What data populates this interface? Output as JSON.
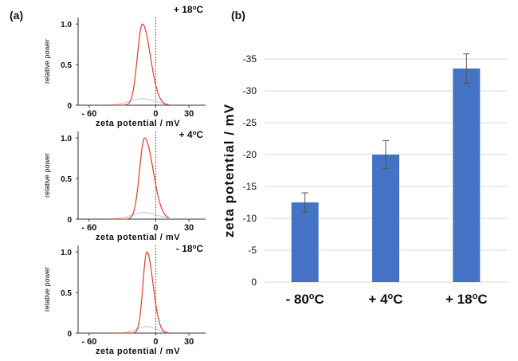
{
  "panel_labels": [
    "(a)",
    "(b)"
  ],
  "chart_data": [
    {
      "type": "line",
      "panel": "(a)",
      "annotation": "+ 18°C",
      "xlabel": "zeta potential / mV",
      "ylabel": "relative power",
      "xlim": [
        -70,
        45
      ],
      "ylim": [
        0,
        1.08
      ],
      "xticks": [
        -60,
        0,
        30
      ],
      "xtick_labels": [
        "- 60",
        "0",
        "30"
      ],
      "yticks": [
        0,
        0.5,
        1.0
      ],
      "ytick_labels": [
        "0",
        "0.5",
        "1.0"
      ],
      "color": "#e03a2a",
      "peak": -12,
      "sigma": 4.5,
      "tail_right": 1.6
    },
    {
      "type": "line",
      "panel": "(a)",
      "annotation": "+ 4°C",
      "xlabel": "zeta potential / mV",
      "ylabel": "relative power",
      "xlim": [
        -70,
        45
      ],
      "ylim": [
        0,
        1.08
      ],
      "xticks": [
        -60,
        0,
        30
      ],
      "xtick_labels": [
        "- 60",
        "0",
        "30"
      ],
      "yticks": [
        0,
        0.5,
        1.0
      ],
      "ytick_labels": [
        "0",
        "0.5",
        "1.0"
      ],
      "color": "#e03a2a",
      "peak": -10,
      "sigma": 4.5,
      "tail_right": 1.7
    },
    {
      "type": "line",
      "panel": "(a)",
      "annotation": "- 18°C",
      "xlabel": "zeta potential / mV",
      "ylabel": "relative power",
      "xlim": [
        -70,
        45
      ],
      "ylim": [
        0,
        1.08
      ],
      "xticks": [
        -60,
        0,
        30
      ],
      "xtick_labels": [
        "- 60",
        "0",
        "30"
      ],
      "yticks": [
        0,
        0.5,
        1.0
      ],
      "ytick_labels": [
        "0",
        "0.5",
        "1.0"
      ],
      "color": "#e03a2a",
      "peak": -8,
      "sigma": 3.5,
      "tail_right": 1.6
    },
    {
      "type": "bar",
      "panel": "(b)",
      "categories": [
        "- 80°C",
        "+ 4°C",
        "+ 18°C"
      ],
      "values": [
        -12.5,
        -20,
        -33.5
      ],
      "errors": [
        1.5,
        2.2,
        2.3
      ],
      "ylabel": "zeta potential / mV",
      "ylim": [
        0,
        -35
      ],
      "yticks": [
        0,
        -5,
        -10,
        -15,
        -20,
        -25,
        -30,
        -35
      ],
      "grid": true,
      "bar_color": "#4472c4"
    }
  ]
}
